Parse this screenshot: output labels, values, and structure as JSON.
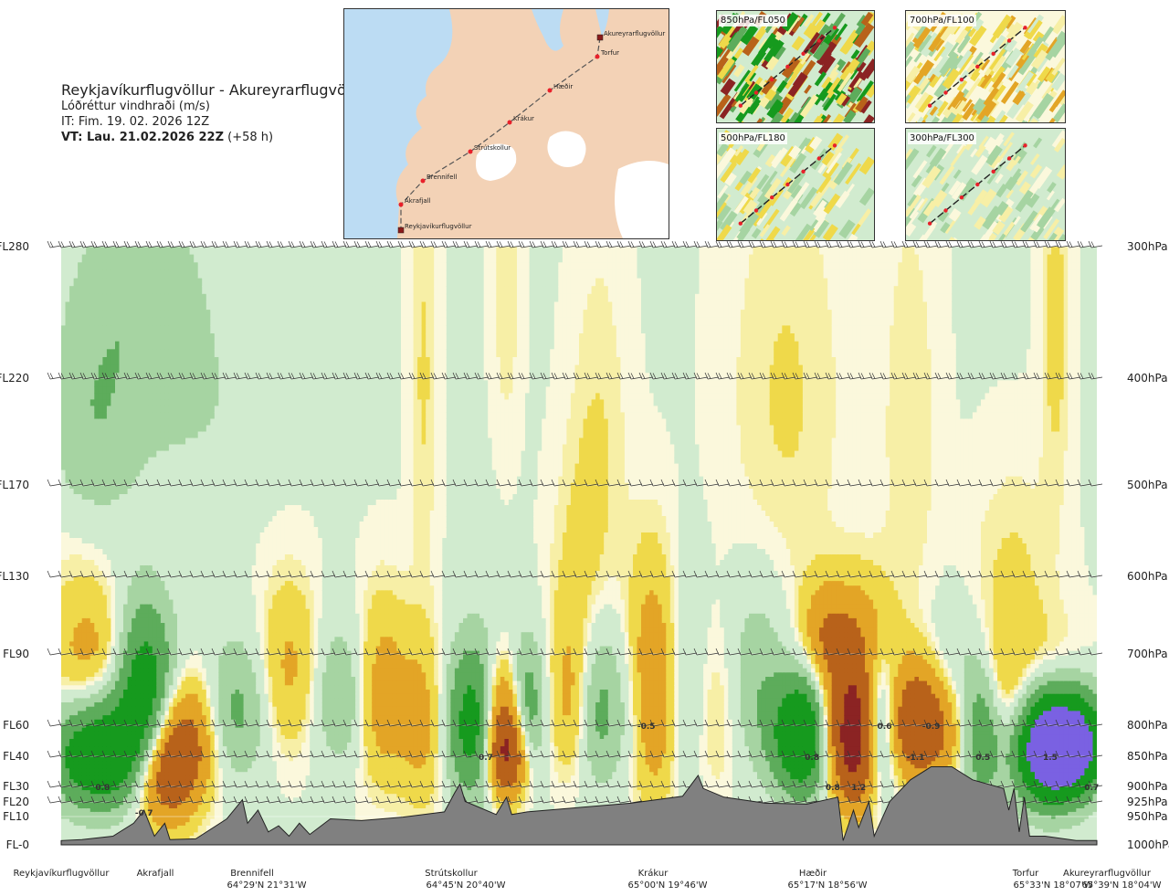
{
  "header": {
    "route": "Reykjavíkurflugvöllur - Akureyrarflugvöllur",
    "variable": "Lóðréttur vindhraði (m/s)",
    "it": "IT: Fim. 19. 02. 2026 12Z",
    "vt_bold": "VT: Lau. 21.02.2026 22Z",
    "vt_rest": " (+58 h)"
  },
  "map": {
    "icon": "route-map",
    "colors": {
      "sea": "#bcdcf3",
      "land": "#f3d2b6",
      "ice": "#ffffff",
      "route": "#555555",
      "point": "#e8202a"
    },
    "waypoints": [
      {
        "name": "Akureyrarflugvöllur",
        "kind": "airport"
      },
      {
        "name": "Torfur",
        "kind": "point"
      },
      {
        "name": "Hæðir",
        "kind": "point"
      },
      {
        "name": "Krákur",
        "kind": "point"
      },
      {
        "name": "Strútskollur",
        "kind": "point"
      },
      {
        "name": "Brennifell",
        "kind": "point"
      },
      {
        "name": "Akrafjall",
        "kind": "point"
      },
      {
        "name": "Reykjavíkurflugvöllur",
        "kind": "airport"
      }
    ]
  },
  "minimaps": [
    {
      "label": "850hPa/FL050"
    },
    {
      "label": "700hPa/FL100"
    },
    {
      "label": "500hPa/FL180"
    },
    {
      "label": "300hPa/FL300"
    }
  ],
  "chart_data": {
    "type": "heatmap",
    "title": "Reykjavíkurflugvöllur - Akureyrarflugvöllur",
    "subtitle": "Lóðréttur vindhraði (m/s)",
    "x_unit": "route fraction (0 = Reykjavíkurflugvöllur, 1 = Akureyrarflugvöllur)",
    "left_axis": [
      {
        "label": "FL280",
        "hpa": 300
      },
      {
        "label": "FL220",
        "hpa": 400
      },
      {
        "label": "FL170",
        "hpa": 500
      },
      {
        "label": "FL130",
        "hpa": 600
      },
      {
        "label": "FL90",
        "hpa": 700
      },
      {
        "label": "FL60",
        "hpa": 800
      },
      {
        "label": "FL40",
        "hpa": 850
      },
      {
        "label": "FL30",
        "hpa": 900
      },
      {
        "label": "FL20",
        "hpa": 925
      },
      {
        "label": "FL10",
        "hpa": 950
      },
      {
        "label": "FL-0",
        "hpa": 1000
      }
    ],
    "right_axis": [
      {
        "label": "300hPa",
        "hpa": 300
      },
      {
        "label": "400hPa",
        "hpa": 400
      },
      {
        "label": "500hPa",
        "hpa": 500
      },
      {
        "label": "600hPa",
        "hpa": 600
      },
      {
        "label": "700hPa",
        "hpa": 700
      },
      {
        "label": "800hPa",
        "hpa": 800
      },
      {
        "label": "850hPa",
        "hpa": 850
      },
      {
        "label": "900hPa",
        "hpa": 900
      },
      {
        "label": "925hPa",
        "hpa": 925
      },
      {
        "label": "950hPa",
        "hpa": 950
      },
      {
        "label": "1000hPa",
        "hpa": 1000
      }
    ],
    "stations": [
      {
        "name": "Reykjavíkurflugvöllur",
        "coords": "",
        "x": 0.0
      },
      {
        "name": "Akrafjall",
        "coords": "",
        "x": 0.09
      },
      {
        "name": "Brennifell",
        "coords": "64°29'N 21°31'W",
        "x": 0.19
      },
      {
        "name": "Strútskollur",
        "coords": "64°45'N 20°40'W",
        "x": 0.38
      },
      {
        "name": "Krákur",
        "coords": "65°00'N 19°46'W",
        "x": 0.58
      },
      {
        "name": "Hæðir",
        "coords": "65°17'N 18°56'W",
        "x": 0.77
      },
      {
        "name": "Torfur",
        "coords": "65°33'N 18°07'W",
        "x": 0.95
      },
      {
        "name": "Akureyrarflugvöllur",
        "coords": "65°39'N 18°04'W",
        "x": 1.0
      }
    ],
    "color_scale": [
      {
        "min": -99,
        "max": -1.0,
        "color": "#8b2323"
      },
      {
        "min": -1.0,
        "max": -0.5,
        "color": "#b8621a"
      },
      {
        "min": -0.5,
        "max": -0.2,
        "color": "#e3a526"
      },
      {
        "min": -0.2,
        "max": -0.05,
        "color": "#efd94a"
      },
      {
        "min": -0.05,
        "max": 0.0,
        "color": "#f7efa6"
      },
      {
        "min": 0.0,
        "max": 0.05,
        "color": "#fbf8dc"
      },
      {
        "min": 0.05,
        "max": 0.2,
        "color": "#d1ebcf"
      },
      {
        "min": 0.2,
        "max": 0.4,
        "color": "#a6d4a2"
      },
      {
        "min": 0.4,
        "max": 0.7,
        "color": "#5dac5b"
      },
      {
        "min": 0.7,
        "max": 1.2,
        "color": "#169a1e"
      },
      {
        "min": 1.2,
        "max": 99,
        "color": "#7a61e2"
      }
    ],
    "labels": [
      {
        "text": "0.8",
        "x": 0.04,
        "hpa": 900
      },
      {
        "text": "-0.7",
        "x": 0.08,
        "hpa": 942
      },
      {
        "text": "0.7",
        "x": 0.41,
        "hpa": 850
      },
      {
        "text": "-0.5",
        "x": 0.565,
        "hpa": 800
      },
      {
        "text": "0.8",
        "x": 0.725,
        "hpa": 850
      },
      {
        "text": "0.8",
        "x": 0.745,
        "hpa": 900
      },
      {
        "text": "1.2",
        "x": 0.77,
        "hpa": 900
      },
      {
        "text": "0.6",
        "x": 0.795,
        "hpa": 800
      },
      {
        "text": "-0.9",
        "x": 0.84,
        "hpa": 800
      },
      {
        "text": "-1.1",
        "x": 0.825,
        "hpa": 850
      },
      {
        "text": "0.5",
        "x": 0.89,
        "hpa": 850
      },
      {
        "text": "1.5",
        "x": 0.955,
        "hpa": 850
      },
      {
        "text": "0.7",
        "x": 0.995,
        "hpa": 900
      }
    ]
  }
}
